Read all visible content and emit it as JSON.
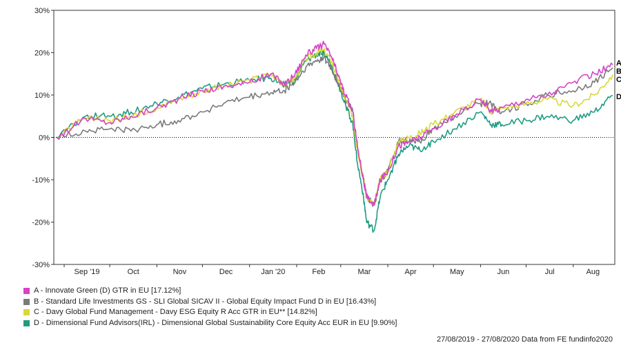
{
  "chart_data": {
    "type": "line",
    "ylim": [
      -30,
      30
    ],
    "y_ticks": [
      "30%",
      "20%",
      "10%",
      "0%",
      "-10%",
      "-20%",
      "-30%"
    ],
    "x_ticks": [
      "Sep '19",
      "Oct",
      "Nov",
      "Dec",
      "Jan '20",
      "Feb",
      "Mar",
      "Apr",
      "May",
      "Jun",
      "Jul",
      "Aug"
    ],
    "x": [
      "27/08/2019",
      "15/09/2019",
      "01/10/2019",
      "15/10/2019",
      "01/11/2019",
      "15/11/2019",
      "01/12/2019",
      "15/12/2019",
      "01/01/2020",
      "15/01/2020",
      "24/01/2020",
      "31/01/2020",
      "07/02/2020",
      "14/02/2020",
      "19/02/2020",
      "24/02/2020",
      "28/02/2020",
      "04/03/2020",
      "09/03/2020",
      "12/03/2020",
      "16/03/2020",
      "18/03/2020",
      "23/03/2020",
      "27/03/2020",
      "01/04/2020",
      "08/04/2020",
      "15/04/2020",
      "22/04/2020",
      "01/05/2020",
      "15/05/2020",
      "01/06/2020",
      "08/06/2020",
      "15/06/2020",
      "01/07/2020",
      "15/07/2020",
      "01/08/2020",
      "15/08/2020",
      "27/08/2020"
    ],
    "series": [
      {
        "name": "A - Innovate Green (D) GTR in EU [17.12%]",
        "color": "#d642c9",
        "values": [
          0,
          4.5,
          3.5,
          5,
          7,
          9,
          11,
          12,
          13,
          15,
          12.5,
          15,
          19.5,
          21,
          22,
          19,
          15,
          10,
          6,
          -2,
          -10,
          -14,
          -16,
          -10,
          -8,
          -2,
          -1,
          0,
          2,
          5,
          9,
          6,
          7,
          9,
          10,
          13,
          15,
          17.12
        ]
      },
      {
        "name": "B - Standard Life Investments GS - SLI Global SICAV II - Global Equity Impact Fund D in EU [16.43%]",
        "color": "#7a7a7a",
        "values": [
          0,
          1.5,
          2,
          1.5,
          3,
          4,
          6,
          8,
          9.5,
          10.5,
          11,
          13,
          16.5,
          18,
          19,
          16,
          13,
          9,
          6,
          -3,
          -10,
          -14,
          -16,
          -10,
          -8,
          -1,
          -1,
          -1,
          2,
          5,
          8,
          8,
          6,
          8,
          10,
          11,
          13,
          16.43
        ]
      },
      {
        "name": "C - Davy Global Fund Management - Davy ESG Equity R Acc GTR in EU** [14.82%]",
        "color": "#d8d838",
        "values": [
          0,
          4.5,
          4,
          5,
          7,
          9,
          11,
          12,
          13.5,
          15,
          12.5,
          14,
          18.5,
          20,
          20.5,
          18,
          14,
          9,
          5,
          -3,
          -10,
          -14,
          -16,
          -10,
          -8,
          -1,
          0,
          1,
          3,
          6,
          9,
          6,
          7,
          8,
          9,
          7.5,
          10,
          14.82
        ]
      },
      {
        "name": "D - Dimensional Fund Advisors(IRL) - Dimensional Global Sustainability Core Equity Acc EUR in EU [9.90%]",
        "color": "#1f9b82",
        "values": [
          0,
          5,
          5,
          6,
          8,
          9.5,
          11.5,
          12.5,
          13.5,
          14,
          12.5,
          13.5,
          18,
          19.5,
          20,
          17,
          13,
          8,
          3,
          -6,
          -14,
          -20,
          -22,
          -14,
          -10,
          -4,
          -2,
          -3,
          -1,
          2,
          6,
          3,
          3,
          4,
          5,
          4,
          6,
          9.9
        ]
      }
    ],
    "end_labels": [
      "A",
      "B",
      "C",
      "D"
    ]
  },
  "footer": "27/08/2019 - 27/08/2020 Data from FE fundinfo2020"
}
